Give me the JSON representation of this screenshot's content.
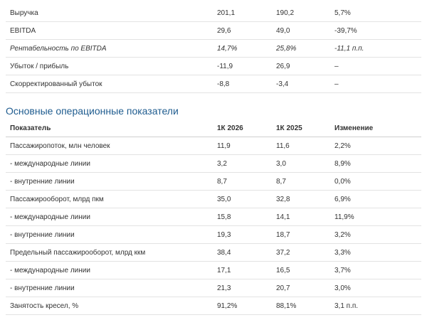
{
  "financial_table": {
    "rows": [
      [
        "Выручка",
        "201,1",
        "190,2",
        "5,7%"
      ],
      [
        "EBITDA",
        "29,6",
        "49,0",
        "-39,7%"
      ],
      [
        "Рентабельность по EBITDA",
        "14,7%",
        "25,8%",
        "-11,1 п.п."
      ],
      [
        "Убыток / прибыль",
        "-11,9",
        "26,9",
        "–"
      ],
      [
        "Скорректированный убыток",
        "-8,8",
        "-3,4",
        "–"
      ]
    ]
  },
  "operational_section": {
    "title": "Основные операционные показатели",
    "table": {
      "header": [
        "Показатель",
        "1К 2026",
        "1К 2025",
        "Изменение"
      ],
      "rows": [
        [
          "Пассажиропоток, млн человек",
          "11,9",
          "11,6",
          "2,2%"
        ],
        [
          "- международные линии",
          "3,2",
          "3,0",
          "8,9%"
        ],
        [
          "- внутренние линии",
          "8,7",
          "8,7",
          "0,0%"
        ],
        [
          "Пассажирооборот, млрд пкм",
          "35,0",
          "32,8",
          "6,9%"
        ],
        [
          "- международные линии",
          "15,8",
          "14,1",
          "11,9%"
        ],
        [
          "- внутренние линии",
          "19,3",
          "18,7",
          "3,2%"
        ],
        [
          "Предельный пассажирооборот, млрд ккм",
          "38,4",
          "37,2",
          "3,3%"
        ],
        [
          "- международные линии",
          "17,1",
          "16,5",
          "3,7%"
        ],
        [
          "- внутренние линии",
          "21,3",
          "20,7",
          "3,0%"
        ],
        [
          "Занятость кресел, %",
          "91,2%",
          "88,1%",
          "3,1 п.п."
        ]
      ]
    }
  }
}
